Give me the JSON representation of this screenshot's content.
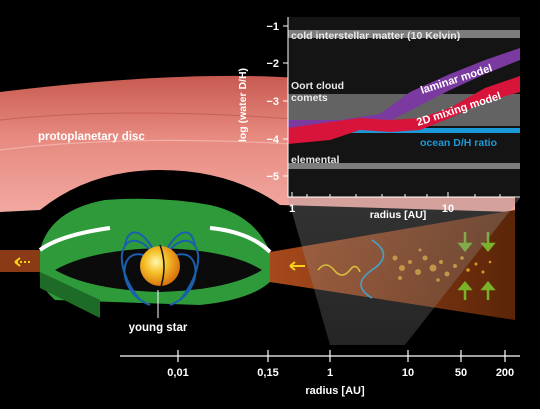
{
  "labels": {
    "disc": "protoplanetary disc",
    "star": "young star"
  },
  "inset": {
    "y_axis_label": "log (water D/H)",
    "x_axis_label": "radius [AU]",
    "y_ticks": [
      "−1",
      "−2",
      "−3",
      "−4",
      "−5"
    ],
    "x_ticks": [
      "1",
      "10"
    ],
    "bands": {
      "cold": "cold interstellar matter (10 Kelvin)",
      "oort1": "Oort cloud",
      "oort2": "comets",
      "elemental": "elemental",
      "ocean": "ocean D/H ratio"
    },
    "models": {
      "laminar": "laminar model",
      "mixing": "2D mixing model"
    }
  },
  "bottom_axis": {
    "label": "radius [AU]",
    "ticks": [
      "0,01",
      "0,15",
      "1",
      "10",
      "50",
      "200"
    ]
  },
  "colors": {
    "laminar": "#7a3aa0",
    "mixing": "#d8143a",
    "ocean": "#1a9ad8",
    "band": "#9a9a9a",
    "disc_green": "#2f9a3a",
    "star": "#f3b21a"
  }
}
